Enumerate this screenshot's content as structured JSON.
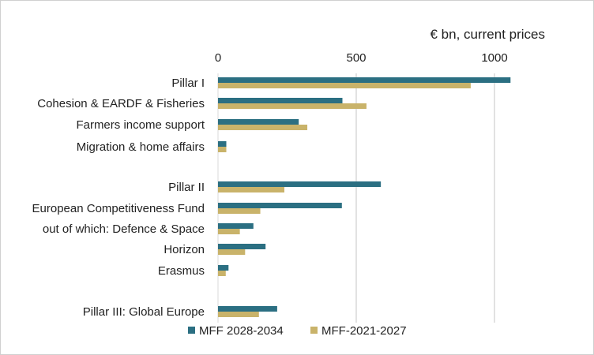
{
  "chart_data": {
    "type": "bar",
    "orientation": "horizontal",
    "title": "",
    "unit_label": "€ bn, current prices",
    "xlim": [
      0,
      1100
    ],
    "xticks": [
      0,
      500,
      1000
    ],
    "grid": true,
    "legend_position": "bottom",
    "categories": [
      "Pillar I",
      "Cohesion & EARDF & Fisheries",
      "Farmers income support",
      "Migration & home affairs",
      "Pillar II",
      "European Competitiveness Fund",
      "out of which: Defence & Space",
      "Horizon",
      "Erasmus",
      "Pillar III: Global Europe"
    ],
    "series": [
      {
        "name": "MFF 2028-2034",
        "color": "#2b6f82",
        "values": [
          1058,
          450,
          292,
          30,
          589,
          448,
          128,
          172,
          38,
          214
        ]
      },
      {
        "name": "MFF-2021-2027",
        "color": "#c9b36a",
        "values": [
          914,
          537,
          323,
          30,
          240,
          153,
          79,
          98,
          28,
          148
        ]
      }
    ]
  }
}
